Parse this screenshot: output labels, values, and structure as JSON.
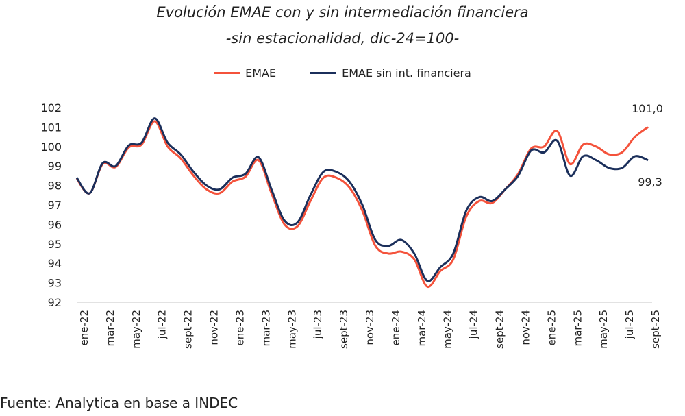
{
  "chart_data": {
    "type": "line",
    "title": "Evolución EMAE con y sin intermediación financiera",
    "subtitle": "-sin estacionalidad, dic-24=100-",
    "xlabel": "",
    "ylabel": "",
    "ylim": [
      92,
      102
    ],
    "yticks": [
      "92",
      "93",
      "94",
      "95",
      "96",
      "97",
      "98",
      "99",
      "100",
      "101",
      "102"
    ],
    "grid": false,
    "legend_position": "top",
    "x": [
      "ene-22",
      "feb-22",
      "mar-22",
      "abr-22",
      "may-22",
      "jun-22",
      "jul-22",
      "ago-22",
      "sept-22",
      "oct-22",
      "nov-22",
      "dic-22",
      "ene-23",
      "feb-23",
      "mar-23",
      "abr-23",
      "may-23",
      "jun-23",
      "jul-23",
      "ago-23",
      "sept-23",
      "oct-23",
      "nov-23",
      "dic-23",
      "ene-24",
      "feb-24",
      "mar-24",
      "abr-24",
      "may-24",
      "jun-24",
      "jul-24",
      "ago-24",
      "sept-24",
      "oct-24",
      "nov-24",
      "dic-24",
      "ene-25",
      "feb-25",
      "mar-25",
      "abr-25",
      "may-25",
      "jun-25",
      "jul-25",
      "ago-25",
      "sept-25"
    ],
    "xtick_labels": [
      "ene-22",
      "mar-22",
      "may-22",
      "jul-22",
      "sept-22",
      "nov-22",
      "ene-23",
      "mar-23",
      "may-23",
      "jul-23",
      "sept-23",
      "nov-23",
      "ene-24",
      "mar-24",
      "may-24",
      "jul-24",
      "sept-24",
      "nov-24",
      "ene-25",
      "mar-25",
      "may-25",
      "jul-25",
      "sept-25"
    ],
    "series": [
      {
        "name": "EMAE",
        "color": "#f4523b",
        "values": [
          98.35,
          97.6,
          99.1,
          98.95,
          99.95,
          100.1,
          101.3,
          100.0,
          99.4,
          98.5,
          97.8,
          97.6,
          98.2,
          98.45,
          99.3,
          97.6,
          96.0,
          95.9,
          97.2,
          98.4,
          98.4,
          97.9,
          96.7,
          94.9,
          94.5,
          94.6,
          94.2,
          92.8,
          93.6,
          94.2,
          96.4,
          97.2,
          97.1,
          97.8,
          98.6,
          99.9,
          100.0,
          100.8,
          99.1,
          100.1,
          100.0,
          99.6,
          99.7,
          100.5,
          101.0
        ],
        "end_label": "101,0"
      },
      {
        "name": "EMAE sin int. financiera",
        "color": "#1b2f5b",
        "values": [
          98.4,
          97.6,
          99.15,
          99.0,
          100.05,
          100.2,
          101.45,
          100.2,
          99.6,
          98.7,
          98.0,
          97.8,
          98.4,
          98.6,
          99.45,
          97.8,
          96.2,
          96.1,
          97.5,
          98.7,
          98.7,
          98.2,
          97.0,
          95.2,
          94.9,
          95.2,
          94.5,
          93.1,
          93.8,
          94.5,
          96.7,
          97.4,
          97.2,
          97.8,
          98.5,
          99.8,
          99.7,
          100.3,
          98.5,
          99.5,
          99.3,
          98.9,
          98.9,
          99.5,
          99.3
        ],
        "end_label": "99,3"
      }
    ]
  },
  "source": "Fuente: Analytica en base a INDEC"
}
